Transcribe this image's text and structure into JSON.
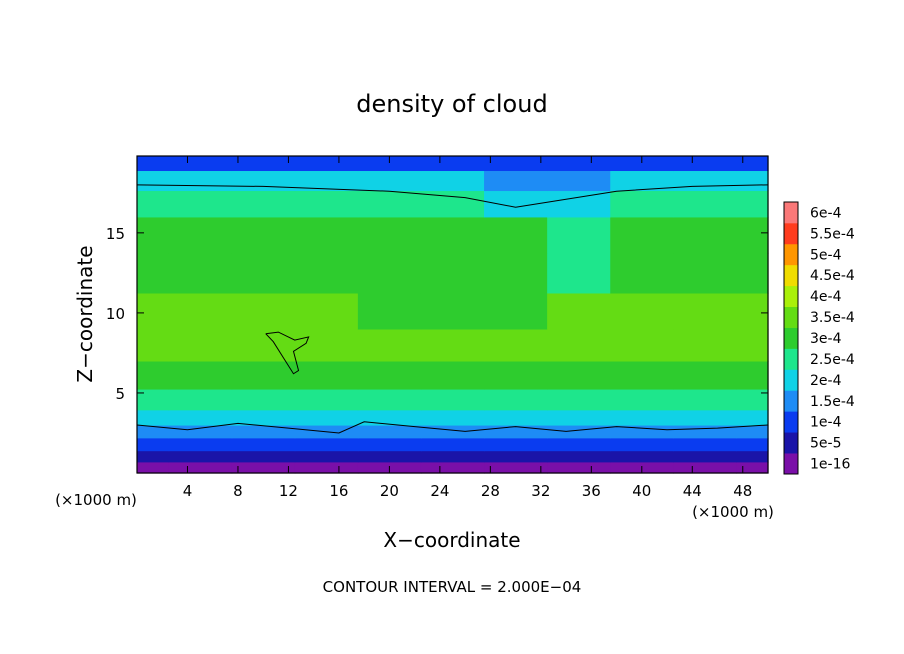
{
  "chart_data": {
    "type": "heatmap",
    "title": "density of cloud",
    "xlabel": "X−coordinate",
    "ylabel": "Z−coordinate",
    "x_unit_label": "(×1000 m)",
    "y_unit_label": "(×1000 m)",
    "xlim": [
      0,
      50
    ],
    "ylim": [
      0,
      19.8
    ],
    "x_ticks": [
      {
        "value": 4,
        "label": "4"
      },
      {
        "value": 8,
        "label": "8"
      },
      {
        "value": 12,
        "label": "12"
      },
      {
        "value": 16,
        "label": "16"
      },
      {
        "value": 20,
        "label": "20"
      },
      {
        "value": 24,
        "label": "24"
      },
      {
        "value": 28,
        "label": "28"
      },
      {
        "value": 32,
        "label": "32"
      },
      {
        "value": 36,
        "label": "36"
      },
      {
        "value": 40,
        "label": "40"
      },
      {
        "value": 44,
        "label": "44"
      },
      {
        "value": 48,
        "label": "48"
      }
    ],
    "y_ticks": [
      {
        "value": 5,
        "label": "5"
      },
      {
        "value": 10,
        "label": "10"
      },
      {
        "value": 15,
        "label": "15"
      }
    ],
    "colorbar": {
      "labels": [
        "1e-16",
        "5e-5",
        "1e-4",
        "1.5e-4",
        "2e-4",
        "2.5e-4",
        "3e-4",
        "3.5e-4",
        "4e-4",
        "4.5e-4",
        "5e-4",
        "5.5e-4",
        "6e-4"
      ],
      "colors": [
        "#7a0fa8",
        "#1a14a8",
        "#0a3cf0",
        "#1e8cf5",
        "#10d2e6",
        "#1ee68c",
        "#2ecc2e",
        "#64dc14",
        "#aaf00a",
        "#f0dc00",
        "#ff9600",
        "#ff3c1e",
        "#fa7878"
      ]
    },
    "contour_interval": "CONTOUR INTERVAL = 2.000E−04",
    "field_rows": [
      {
        "z": 0.4,
        "values": [
          1e-16,
          1e-16,
          1e-16,
          1e-16,
          1e-16,
          1e-16,
          1e-16,
          1e-16,
          1e-16,
          1e-16,
          1e-16
        ]
      },
      {
        "z": 1.0,
        "values": [
          5e-05,
          5e-05,
          5e-05,
          5e-05,
          5e-05,
          5e-05,
          5e-05,
          5e-05,
          5e-05,
          5e-05,
          5e-05
        ]
      },
      {
        "z": 1.8,
        "values": [
          0.0001,
          0.0001,
          0.0001,
          0.0001,
          0.0001,
          0.0001,
          0.0001,
          0.0001,
          0.0001,
          0.0001,
          0.0001
        ]
      },
      {
        "z": 2.6,
        "values": [
          0.00015,
          0.00015,
          0.00015,
          0.00015,
          0.00015,
          0.00015,
          0.00015,
          0.00015,
          0.00015,
          0.00015,
          0.00015
        ]
      },
      {
        "z": 3.4,
        "values": [
          0.0002,
          0.0002,
          0.0002,
          0.0002,
          0.0002,
          0.0002,
          0.0002,
          0.0002,
          0.0002,
          0.0002,
          0.0002
        ]
      },
      {
        "z": 4.5,
        "values": [
          0.00025,
          0.00025,
          0.00025,
          0.00025,
          0.00025,
          0.00025,
          0.00025,
          0.00025,
          0.00025,
          0.00025,
          0.00025
        ]
      },
      {
        "z": 6.0,
        "values": [
          0.0003,
          0.0003,
          0.0003,
          0.0003,
          0.0003,
          0.0003,
          0.0003,
          0.0003,
          0.0003,
          0.0003,
          0.0003
        ]
      },
      {
        "z": 8.0,
        "values": [
          0.00035,
          0.00035,
          0.00035,
          0.00035,
          0.00035,
          0.00035,
          0.00035,
          0.00035,
          0.00035,
          0.00035,
          0.00035
        ]
      },
      {
        "z": 10.0,
        "values": [
          0.00035,
          0.00035,
          0.00035,
          0.00035,
          0.0003,
          0.0003,
          0.0003,
          0.00035,
          0.00035,
          0.00035,
          0.00035
        ]
      },
      {
        "z": 12.5,
        "values": [
          0.0003,
          0.0003,
          0.0003,
          0.0003,
          0.0003,
          0.0003,
          0.0003,
          0.00025,
          0.0003,
          0.0003,
          0.0003
        ]
      },
      {
        "z": 15.0,
        "values": [
          0.0003,
          0.0003,
          0.0003,
          0.0003,
          0.0003,
          0.0003,
          0.0003,
          0.00025,
          0.0003,
          0.0003,
          0.0003
        ]
      },
      {
        "z": 17.0,
        "values": [
          0.00025,
          0.00025,
          0.00025,
          0.00025,
          0.00025,
          0.00025,
          0.0002,
          0.0002,
          0.00025,
          0.00025,
          0.00025
        ]
      },
      {
        "z": 18.3,
        "values": [
          0.0002,
          0.0002,
          0.0002,
          0.0002,
          0.0002,
          0.0002,
          0.00015,
          0.00015,
          0.0002,
          0.0002,
          0.0002
        ]
      },
      {
        "z": 19.5,
        "values": [
          0.0001,
          0.0001,
          0.0001,
          0.0001,
          0.0001,
          0.0001,
          0.0001,
          0.0001,
          0.0001,
          0.0001,
          0.0001
        ]
      }
    ],
    "field_x": [
      0,
      5,
      10,
      15,
      20,
      25,
      30,
      35,
      40,
      45,
      50
    ],
    "contour_top": [
      {
        "x": 0,
        "z": 18.0
      },
      {
        "x": 10,
        "z": 17.9
      },
      {
        "x": 20,
        "z": 17.6
      },
      {
        "x": 26,
        "z": 17.2
      },
      {
        "x": 30,
        "z": 16.6
      },
      {
        "x": 34,
        "z": 17.1
      },
      {
        "x": 38,
        "z": 17.6
      },
      {
        "x": 44,
        "z": 17.9
      },
      {
        "x": 50,
        "z": 18.0
      }
    ],
    "contour_low": [
      {
        "x": 0,
        "z": 3.0
      },
      {
        "x": 4,
        "z": 2.7
      },
      {
        "x": 8,
        "z": 3.1
      },
      {
        "x": 12,
        "z": 2.8
      },
      {
        "x": 16,
        "z": 2.5
      },
      {
        "x": 18,
        "z": 3.2
      },
      {
        "x": 22,
        "z": 2.9
      },
      {
        "x": 26,
        "z": 2.6
      },
      {
        "x": 30,
        "z": 2.9
      },
      {
        "x": 34,
        "z": 2.6
      },
      {
        "x": 38,
        "z": 2.9
      },
      {
        "x": 42,
        "z": 2.7
      },
      {
        "x": 46,
        "z": 2.8
      },
      {
        "x": 50,
        "z": 3.0
      }
    ],
    "contour_patch": [
      {
        "x": 10.2,
        "z": 8.7
      },
      {
        "x": 11.2,
        "z": 8.8
      },
      {
        "x": 12.5,
        "z": 8.3
      },
      {
        "x": 13.6,
        "z": 8.5
      },
      {
        "x": 13.4,
        "z": 8.1
      },
      {
        "x": 12.4,
        "z": 7.6
      },
      {
        "x": 12.8,
        "z": 6.4
      },
      {
        "x": 12.4,
        "z": 6.2
      },
      {
        "x": 11.6,
        "z": 7.2
      },
      {
        "x": 10.8,
        "z": 8.2
      },
      {
        "x": 10.2,
        "z": 8.7
      }
    ]
  }
}
